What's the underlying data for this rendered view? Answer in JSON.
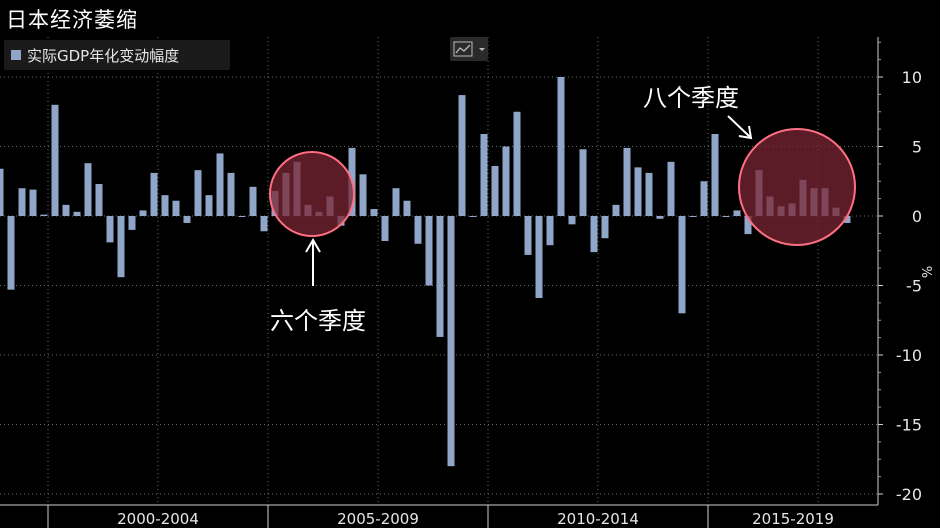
{
  "title": "日本经济萎缩",
  "legend": {
    "label": "实际GDP年化变动幅度",
    "color": "#8fa6c8"
  },
  "annotations": {
    "left": "六个季度",
    "right": "八个季度"
  },
  "icons": {
    "chart_toggle": "line-chart-icon"
  },
  "colors": {
    "bar": "#8fa6c8",
    "highlight_fill": "#7a2535",
    "highlight_stroke": "#ff6f82",
    "background": "#000000"
  },
  "chart_data": {
    "type": "bar",
    "title": "日本经济萎缩",
    "ylabel": "%",
    "ylim": [
      -20,
      13
    ],
    "yticks": [
      10,
      5,
      0,
      -5,
      -10,
      -15,
      -20
    ],
    "grid": true,
    "legend_position": "top-left",
    "period_labels": [
      "2000-2004",
      "2005-2009",
      "2010-2014",
      "2015-2019"
    ],
    "series": [
      {
        "name": "实际GDP年化变动幅度",
        "values": [
          3.4,
          -5.3,
          2.0,
          1.9,
          0.1,
          8.0,
          0.8,
          0.3,
          3.8,
          2.3,
          -1.9,
          -4.4,
          -1.0,
          0.4,
          3.1,
          1.5,
          1.1,
          -0.5,
          3.3,
          1.5,
          4.5,
          3.1,
          0.0,
          2.1,
          -1.1,
          1.8,
          3.1,
          3.9,
          0.8,
          0.3,
          1.4,
          -0.7,
          4.9,
          3.0,
          0.5,
          -1.8,
          2.0,
          1.1,
          -2.0,
          -5.0,
          -8.7,
          -18.0,
          8.7,
          0.0,
          5.9,
          3.6,
          5.0,
          7.5,
          -2.8,
          -5.9,
          -2.1,
          10.0,
          -0.6,
          4.8,
          -2.6,
          -1.6,
          0.8,
          4.9,
          3.5,
          3.1,
          -0.2,
          3.9,
          -7.0,
          0.0,
          2.5,
          5.9,
          0.0,
          0.4,
          -1.3,
          3.3,
          1.4,
          0.7,
          0.9,
          2.6,
          2.0,
          2.0,
          0.6,
          -0.5
        ]
      }
    ]
  }
}
